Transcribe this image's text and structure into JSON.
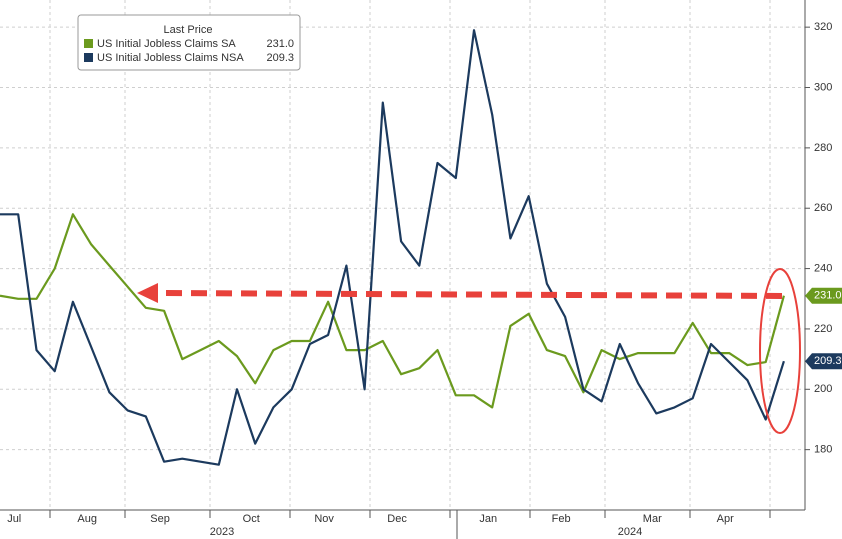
{
  "chart_data": {
    "type": "line",
    "legend_title": "Last Price",
    "categories": [
      null,
      "Jul",
      null,
      null,
      null,
      "Aug",
      null,
      null,
      null,
      "Sep",
      null,
      null,
      null,
      null,
      "Oct",
      null,
      null,
      null,
      "Nov",
      null,
      null,
      null,
      "Dec",
      null,
      null,
      null,
      null,
      "Jan",
      null,
      null,
      null,
      "Feb",
      null,
      null,
      null,
      null,
      "Mar",
      null,
      null,
      null,
      "Apr",
      null,
      null,
      null
    ],
    "year_labels": [
      "2023",
      "2024"
    ],
    "series": [
      {
        "name": "US Initial Jobless Claims SA",
        "color": "#6b9a1e",
        "last_label": "231.0",
        "values": [
          231,
          230,
          230,
          240,
          258,
          248,
          241,
          234,
          227,
          226,
          210,
          213,
          216,
          211,
          202,
          213,
          216,
          216,
          229,
          213,
          213,
          216,
          205,
          207,
          213,
          198,
          198,
          194,
          221,
          225,
          213,
          211,
          199,
          213,
          210,
          212,
          212,
          212,
          222,
          212,
          212,
          208,
          209,
          231
        ]
      },
      {
        "name": "US Initial Jobless Claims NSA",
        "color": "#1c3a5e",
        "last_label": "209.3",
        "values": [
          258,
          258,
          213,
          206,
          229,
          214,
          199,
          193,
          191,
          176,
          177,
          176,
          175,
          200,
          182,
          194,
          200,
          215,
          218,
          241,
          200,
          295,
          249,
          241,
          275,
          270,
          319,
          291,
          250,
          264,
          235,
          224,
          200,
          196,
          215,
          202,
          192,
          194,
          197,
          215,
          209,
          203,
          190,
          209.3
        ]
      }
    ],
    "ylim": [
      160,
      329
    ],
    "yticks": [
      180,
      200,
      220,
      240,
      260,
      280,
      300,
      320
    ],
    "grid": true,
    "y_axis_side": "right"
  }
}
